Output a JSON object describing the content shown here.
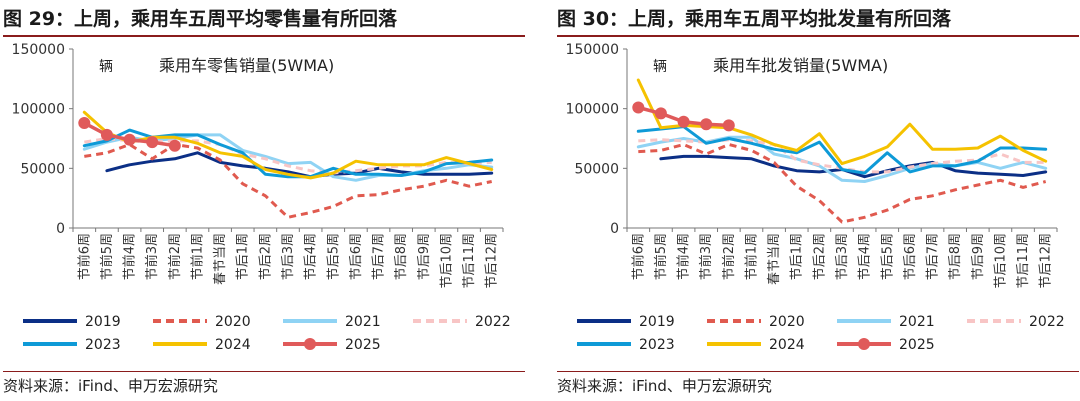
{
  "charts_meta": [
    {
      "title": "图 29：上周，乘用车五周平均零售量有所回落",
      "source": "资料来源：iFind、申万宏源研究"
    },
    {
      "title": "图 30：上周，乘用车五周平均批发量有所回落",
      "source": "资料来源：iFind、申万宏源研究"
    }
  ],
  "chart_data": [
    {
      "type": "line",
      "title": "乘用车零售销量(5WMA)",
      "ylabel": "辆",
      "ylim": [
        0,
        150000
      ],
      "yticks": [
        0,
        50000,
        100000,
        150000
      ],
      "ytick_labels": [
        "0",
        "50000",
        "100000",
        "150000"
      ],
      "grid": false,
      "legend_position": "bottom",
      "categories": [
        "节前6周",
        "节前5周",
        "节前4周",
        "节前3周",
        "节前2周",
        "节前1周",
        "春节当周",
        "节后1周",
        "节后2周",
        "节后3周",
        "节后4周",
        "节后5周",
        "节后6周",
        "节后7周",
        "节后8周",
        "节后9周",
        "节后10周",
        "节后11周",
        "节后12周"
      ],
      "series": [
        {
          "name": "2019",
          "color": "#0b2f86",
          "dash": "solid",
          "values": [
            null,
            48000,
            53000,
            56000,
            58000,
            63000,
            55000,
            52000,
            50000,
            47000,
            43000,
            45000,
            46000,
            50000,
            47000,
            45000,
            45000,
            45000,
            46000
          ]
        },
        {
          "name": "2020",
          "color": "#e05a4f",
          "dash": "dashed",
          "values": [
            60000,
            63000,
            70000,
            58000,
            70000,
            67000,
            57000,
            37000,
            27000,
            9000,
            13000,
            18000,
            27000,
            28000,
            32000,
            35000,
            40000,
            35000,
            39000
          ]
        },
        {
          "name": "2021",
          "color": "#8fd3f4",
          "dash": "solid",
          "values": [
            66000,
            72000,
            76000,
            73000,
            75000,
            78000,
            78000,
            65000,
            60000,
            54000,
            55000,
            43000,
            40000,
            44000,
            44000,
            48000,
            50000,
            53000,
            51000
          ]
        },
        {
          "name": "2022",
          "color": "#f8c5c5",
          "dash": "dashed",
          "values": [
            72000,
            75000,
            73000,
            72000,
            73000,
            73000,
            70000,
            62000,
            58000,
            52000,
            48000,
            46000,
            48000,
            50000,
            52000,
            52000,
            55000,
            54000,
            55000
          ]
        },
        {
          "name": "2023",
          "color": "#0e9ad7",
          "dash": "solid",
          "values": [
            69000,
            73000,
            82000,
            76000,
            78000,
            78000,
            70000,
            63000,
            45000,
            43000,
            43000,
            50000,
            45000,
            45000,
            44000,
            47000,
            54000,
            55000,
            57000
          ]
        },
        {
          "name": "2024",
          "color": "#f5c200",
          "dash": "solid",
          "values": [
            97000,
            80000,
            72000,
            76000,
            76000,
            71000,
            63000,
            60000,
            49000,
            45000,
            42000,
            46000,
            56000,
            53000,
            53000,
            53000,
            59000,
            54000,
            49000
          ]
        },
        {
          "name": "2025",
          "color": "#e05a5a",
          "dash": "marker",
          "values": [
            88000,
            78000,
            74000,
            72000,
            69000,
            null,
            null,
            null,
            null,
            null,
            null,
            null,
            null,
            null,
            null,
            null,
            null,
            null,
            null
          ]
        }
      ]
    },
    {
      "type": "line",
      "title": "乘用车批发销量(5WMA)",
      "ylabel": "辆",
      "ylim": [
        0,
        150000
      ],
      "yticks": [
        0,
        50000,
        100000,
        150000
      ],
      "ytick_labels": [
        "0",
        "50000",
        "100000",
        "150000"
      ],
      "grid": false,
      "legend_position": "bottom",
      "categories": [
        "节前6周",
        "节前5周",
        "节前4周",
        "节前3周",
        "节前2周",
        "节前1周",
        "春节当周",
        "节后1周",
        "节后2周",
        "节后3周",
        "节后4周",
        "节后5周",
        "节后6周",
        "节后7周",
        "节后8周",
        "节后9周",
        "节后10周",
        "节后11周",
        "节后12周"
      ],
      "series": [
        {
          "name": "2019",
          "color": "#0b2f86",
          "dash": "solid",
          "values": [
            null,
            58000,
            60000,
            60000,
            59000,
            58000,
            52000,
            48000,
            47000,
            49000,
            43000,
            48000,
            52000,
            55000,
            48000,
            46000,
            45000,
            44000,
            47000
          ]
        },
        {
          "name": "2020",
          "color": "#e05a4f",
          "dash": "dashed",
          "values": [
            64000,
            65000,
            70000,
            62000,
            70000,
            65000,
            55000,
            35000,
            23000,
            5000,
            9000,
            15000,
            24000,
            27000,
            32000,
            36000,
            40000,
            34000,
            39000
          ]
        },
        {
          "name": "2021",
          "color": "#8fd3f4",
          "dash": "solid",
          "values": [
            68000,
            72000,
            75000,
            72000,
            76000,
            76000,
            62000,
            58000,
            52000,
            40000,
            39000,
            44000,
            50000,
            54000,
            52000,
            55000,
            50000,
            55000,
            50000
          ]
        },
        {
          "name": "2022",
          "color": "#f8c5c5",
          "dash": "dashed",
          "values": [
            73000,
            74000,
            73000,
            72000,
            74000,
            73000,
            70000,
            57000,
            53000,
            50000,
            47000,
            47000,
            51000,
            54000,
            56000,
            57000,
            62000,
            55000,
            55000
          ]
        },
        {
          "name": "2023",
          "color": "#0e9ad7",
          "dash": "solid",
          "values": [
            81000,
            83000,
            85000,
            71000,
            75000,
            71000,
            66000,
            63000,
            72000,
            49000,
            46000,
            63000,
            47000,
            52000,
            52000,
            56000,
            67000,
            67000,
            66000
          ]
        },
        {
          "name": "2024",
          "color": "#f5c200",
          "dash": "solid",
          "values": [
            124000,
            84000,
            86000,
            85000,
            84000,
            78000,
            70000,
            65000,
            79000,
            54000,
            60000,
            68000,
            87000,
            66000,
            66000,
            67000,
            77000,
            65000,
            56000
          ]
        },
        {
          "name": "2025",
          "color": "#e05a5a",
          "dash": "marker",
          "values": [
            101000,
            96000,
            89000,
            87000,
            86000,
            null,
            null,
            null,
            null,
            null,
            null,
            null,
            null,
            null,
            null,
            null,
            null,
            null,
            null
          ]
        }
      ]
    }
  ]
}
